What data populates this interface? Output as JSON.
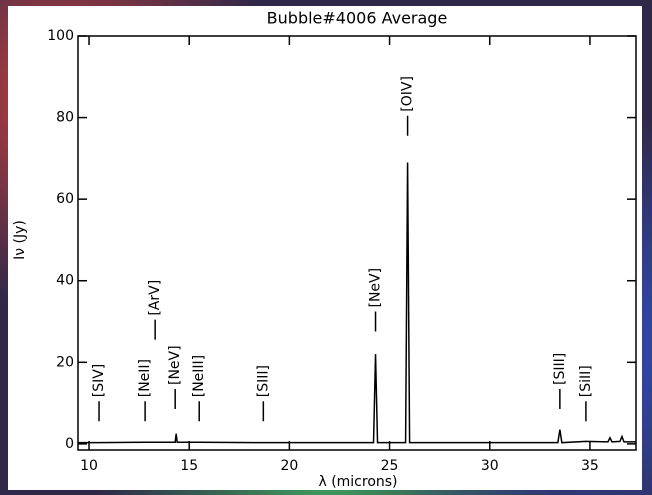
{
  "chart_data": {
    "type": "line",
    "title": "Bubble#4006 Average",
    "xlabel": "λ (microns)",
    "ylabel": "Iν (Jy)",
    "xlim": [
      9.45,
      37.3
    ],
    "ylim": [
      -1.5,
      100
    ],
    "xticks": [
      10,
      15,
      20,
      25,
      30,
      35
    ],
    "yticks": [
      0,
      20,
      40,
      60,
      80,
      100
    ],
    "series": [
      {
        "color": "#000000",
        "x": [
          9.45,
          10.5,
          12.8,
          14.3,
          14.35,
          14.4,
          15.5,
          18.7,
          24.2,
          24.3,
          24.4,
          25.8,
          25.9,
          26.0,
          33.4,
          33.5,
          33.6,
          34.8,
          35.9,
          36.0,
          36.1,
          36.5,
          36.6,
          36.7,
          37.3
        ],
        "values": [
          0.3,
          0.3,
          0.4,
          0.4,
          2.5,
          0.4,
          0.4,
          0.3,
          0.3,
          22,
          0.3,
          0.3,
          69,
          0.3,
          0.3,
          3.5,
          0.3,
          0.6,
          0.5,
          1.5,
          0.5,
          0.6,
          1.8,
          0.5,
          0.5
        ]
      }
    ],
    "annotations": [
      {
        "text": "[SIV]",
        "x": 10.5,
        "y": 8
      },
      {
        "text": "[NeII]",
        "x": 12.8,
        "y": 8
      },
      {
        "text": "[ArV]",
        "x": 13.3,
        "y": 28
      },
      {
        "text": "[NeV]",
        "x": 14.3,
        "y": 11
      },
      {
        "text": "[NeIII]",
        "x": 15.5,
        "y": 8
      },
      {
        "text": "[SIII]",
        "x": 18.7,
        "y": 8
      },
      {
        "text": "[NeV]",
        "x": 24.3,
        "y": 30
      },
      {
        "text": "[OIV]",
        "x": 25.9,
        "y": 78
      },
      {
        "text": "[SIII]",
        "x": 33.5,
        "y": 11
      },
      {
        "text": "[SiII]",
        "x": 34.8,
        "y": 8
      }
    ]
  }
}
